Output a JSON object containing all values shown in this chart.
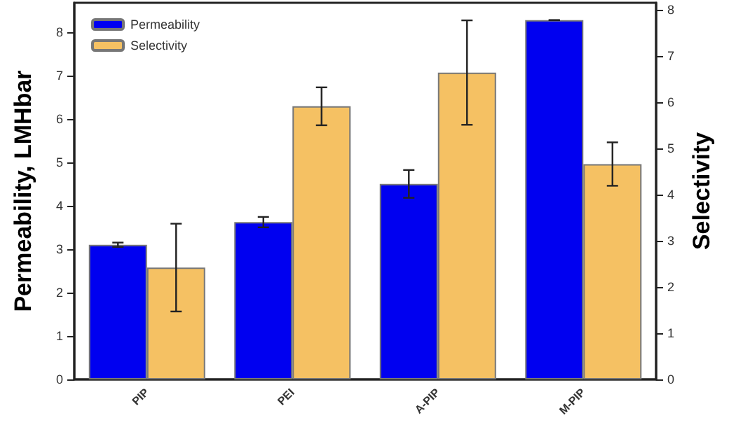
{
  "chart_data": {
    "type": "bar",
    "ylabel": "Permeability, LMHbar",
    "y2label": "Selectivity",
    "categories": [
      "PIP",
      "PEI",
      "A-PIP",
      "M-PIP"
    ],
    "series": [
      {
        "name": "Permeability",
        "color": "#0000f0",
        "values": [
          3.1,
          3.62,
          4.5,
          8.27
        ],
        "errors": [
          0.05,
          0.12,
          0.32,
          0
        ]
      },
      {
        "name": "Selectivity",
        "color": "#f5c163",
        "axis": "y2",
        "values": [
          2.42,
          5.91,
          6.64,
          4.66
        ],
        "errors": [
          0.95,
          0.41,
          1.13,
          0.47
        ]
      }
    ],
    "ylim": [
      0,
      8.67
    ],
    "yticks": [
      0,
      1,
      2,
      3,
      4,
      5,
      6,
      7,
      8
    ],
    "y2lim": [
      0,
      8.15
    ],
    "y2ticks": [
      0,
      1,
      2,
      3,
      4,
      5,
      6,
      7,
      8
    ],
    "legend": "top left",
    "grid": false
  }
}
